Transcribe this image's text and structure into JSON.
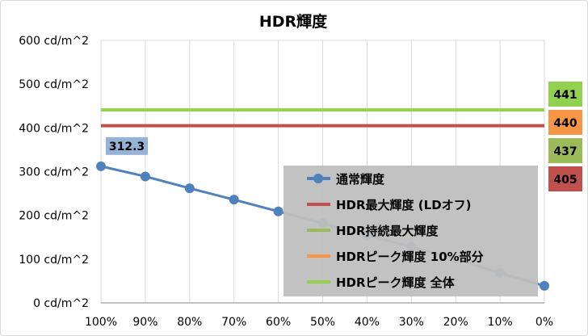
{
  "chart_data": {
    "type": "line",
    "title": "HDR輝度",
    "xlabel": "",
    "ylabel": "",
    "x_categories": [
      "100%",
      "90%",
      "80%",
      "70%",
      "60%",
      "50%",
      "40%",
      "30%",
      "20%",
      "10%",
      "0%"
    ],
    "ylim": [
      0,
      600
    ],
    "y_ticks": [
      "0 cd/m^2",
      "100 cd/m^2",
      "200 cd/m^2",
      "300 cd/m^2",
      "400 cd/m^2",
      "500 cd/m^2",
      "600 cd/m^2"
    ],
    "grid": "vertical",
    "legend_position": "bottom-right",
    "series": [
      {
        "name": "通常輝度",
        "kind": "line-markers",
        "color": "#4f81bd",
        "values": [
          312.3,
          289,
          262,
          236,
          209,
          182,
          155,
          128,
          101,
          68,
          39
        ],
        "label_first": "312.3"
      },
      {
        "name": "HDR最大輝度 (LDオフ)",
        "kind": "hline",
        "color": "#c0504d",
        "value": 405,
        "badge": "405"
      },
      {
        "name": "HDR持続最大輝度",
        "kind": "hline",
        "color": "#9bbb59",
        "value": 437,
        "badge": "437"
      },
      {
        "name": "HDRピーク輝度 10%部分",
        "kind": "hline",
        "color": "#f79646",
        "value": 440,
        "badge": "440"
      },
      {
        "name": "HDRピーク輝度 全体",
        "kind": "hline",
        "color": "#92d050",
        "value": 441,
        "badge": "441"
      }
    ]
  }
}
